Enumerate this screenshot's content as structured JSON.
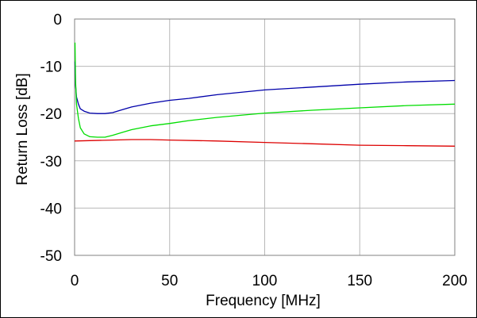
{
  "chart_data": {
    "type": "line",
    "title": "",
    "xlabel": "Frequency [MHz]",
    "ylabel": "Return Loss [dB]",
    "xlim": [
      0,
      200
    ],
    "ylim": [
      -50,
      0
    ],
    "xticks": [
      0,
      50,
      100,
      150,
      200
    ],
    "yticks": [
      0,
      -10,
      -20,
      -30,
      -40,
      -50
    ],
    "xtick_labels": [
      "0",
      "50",
      "100",
      "150",
      "200"
    ],
    "ytick_labels": [
      "0",
      "-10",
      "-20",
      "-30",
      "-40",
      "-50"
    ],
    "grid": true,
    "legend": "none",
    "series": [
      {
        "color": "#0000aa",
        "x": [
          0.2,
          0.5,
          1,
          2,
          3,
          5,
          8,
          12,
          16,
          20,
          25,
          30,
          40,
          50,
          60,
          75,
          100,
          125,
          150,
          175,
          200
        ],
        "y": [
          -9,
          -14,
          -16.5,
          -18,
          -19,
          -19.5,
          -19.9,
          -20,
          -20,
          -19.8,
          -19.2,
          -18.6,
          -17.8,
          -17.2,
          -16.8,
          -16,
          -15,
          -14.4,
          -13.8,
          -13.3,
          -13
        ]
      },
      {
        "color": "#00dd00",
        "x": [
          0.2,
          0.5,
          1,
          2,
          3,
          5,
          8,
          12,
          16,
          20,
          25,
          30,
          40,
          50,
          60,
          75,
          100,
          125,
          150,
          175,
          200
        ],
        "y": [
          -5,
          -13,
          -18,
          -21,
          -23,
          -24.3,
          -24.9,
          -25,
          -25,
          -24.6,
          -24,
          -23.4,
          -22.6,
          -22.1,
          -21.5,
          -20.8,
          -19.9,
          -19.3,
          -18.8,
          -18.3,
          -18
        ]
      },
      {
        "color": "#dd0000",
        "x": [
          0,
          10,
          20,
          30,
          40,
          50,
          75,
          100,
          125,
          150,
          175,
          200
        ],
        "y": [
          -25.8,
          -25.7,
          -25.6,
          -25.5,
          -25.5,
          -25.6,
          -25.8,
          -26.1,
          -26.4,
          -26.7,
          -26.8,
          -26.9
        ]
      }
    ]
  }
}
